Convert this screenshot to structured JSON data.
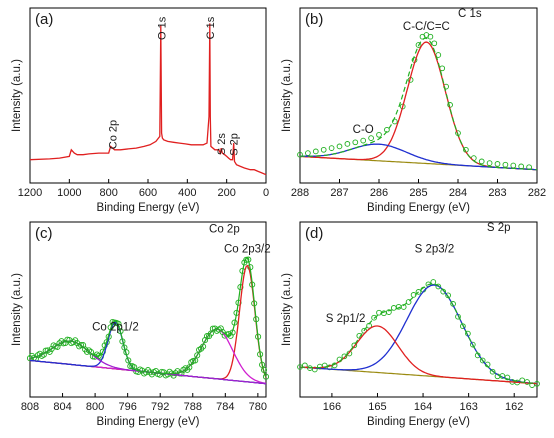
{
  "figure": {
    "panels": [
      {
        "id": "a",
        "label": "(a)",
        "xlabel": "Binding Energy (eV)",
        "ylabel": "Intensity (a.u.)",
        "xticks": [
          "1200",
          "1000",
          "800",
          "600",
          "400",
          "200",
          "0"
        ],
        "annotations": [
          {
            "text": "Co 2p",
            "vertical": true
          },
          {
            "text": "O 1s",
            "vertical": true
          },
          {
            "text": "C 1s",
            "vertical": true
          },
          {
            "text": "S 2s",
            "vertical": true
          },
          {
            "text": "S 2p",
            "vertical": true
          }
        ]
      },
      {
        "id": "b",
        "label": "(b)",
        "xlabel": "Binding Energy (eV)",
        "ylabel": "Intensity (a.u.)",
        "xticks": [
          "288",
          "287",
          "286",
          "285",
          "284",
          "283",
          "282"
        ],
        "title": "C 1s",
        "annotations": [
          {
            "text": "C-C/C=C"
          },
          {
            "text": "C-O"
          }
        ]
      },
      {
        "id": "c",
        "label": "(c)",
        "xlabel": "Binding Energy (eV)",
        "ylabel": "Intensity (a.u.)",
        "xticks": [
          "808",
          "804",
          "800",
          "796",
          "792",
          "788",
          "784",
          "780"
        ],
        "title": "Co 2p",
        "annotations": [
          {
            "text": "Co 2p3/2"
          },
          {
            "text": "Co 2p1/2"
          }
        ]
      },
      {
        "id": "d",
        "label": "(d)",
        "xlabel": "Binding Energy (eV)",
        "ylabel": "Intensity (a.u.)",
        "xticks": [
          "166",
          "165",
          "164",
          "163",
          "162"
        ],
        "title": "S 2p",
        "annotations": [
          {
            "text": "S 2p3/2"
          },
          {
            "text": "S 2p1/2"
          }
        ]
      }
    ]
  },
  "chart_data": [
    {
      "type": "line",
      "panel": "(a)",
      "xlabel": "Binding Energy (eV)",
      "ylabel": "Intensity (a.u.)",
      "xlim": [
        1200,
        0
      ],
      "ylim": [
        0,
        100
      ],
      "x_reversed": true,
      "colors": {
        "survey": "#e02020"
      },
      "series": [
        {
          "style": "line",
          "color": "#e02020",
          "x": [
            1200,
            1100,
            1050,
            1000,
            990,
            975,
            960,
            930,
            900,
            850,
            800,
            790,
            780,
            770,
            740,
            700,
            660,
            620,
            590,
            560,
            540,
            535,
            531,
            527,
            520,
            500,
            470,
            440,
            410,
            380,
            350,
            320,
            300,
            290,
            286,
            283,
            280,
            260,
            240,
            232,
            228,
            222,
            210,
            200,
            190,
            180,
            170,
            164,
            160,
            150,
            130,
            110,
            80,
            60,
            40,
            20,
            0
          ],
          "y": [
            14,
            14.5,
            15,
            16,
            20,
            18,
            17,
            17,
            17.5,
            18,
            18,
            22,
            21,
            20,
            20,
            20.5,
            21,
            22,
            23,
            25,
            28,
            95,
            30,
            27,
            26,
            25,
            24.5,
            24,
            23.5,
            23,
            23,
            23,
            24,
            40,
            96,
            40,
            22,
            20,
            20,
            18,
            21,
            18,
            17,
            16,
            15,
            14,
            14,
            24,
            13,
            11,
            10,
            9,
            8,
            8,
            7,
            6,
            5
          ]
        }
      ],
      "peaks": [
        {
          "name": "Co 2p",
          "x": 780
        },
        {
          "name": "O 1s",
          "x": 531
        },
        {
          "name": "C 1s",
          "x": 284.5
        },
        {
          "name": "S 2s",
          "x": 228
        },
        {
          "name": "S 2p",
          "x": 164
        }
      ]
    },
    {
      "type": "line",
      "panel": "(b)",
      "xlabel": "Binding Energy (eV)",
      "ylabel": "Intensity (a.u.)",
      "xlim": [
        288,
        282
      ],
      "ylim": [
        0,
        100
      ],
      "x_reversed": true,
      "baseline": {
        "x": [
          288,
          282
        ],
        "y": [
          16,
          8
        ]
      },
      "components": [
        {
          "name": "C-C/C=C",
          "center": 284.8,
          "height": 73,
          "sigma": 0.48,
          "color": "#e02020"
        },
        {
          "name": "C-O",
          "center": 286.0,
          "height": 10,
          "sigma": 0.7,
          "color": "#2030d0"
        }
      ],
      "colors": {
        "baseline": "#9a8a10",
        "envelope": "#20b020",
        "data": "#20b020"
      },
      "data_points": {
        "x": [
          288.0,
          287.8,
          287.6,
          287.4,
          287.2,
          287.0,
          286.8,
          286.6,
          286.4,
          286.2,
          286.0,
          285.8,
          285.6,
          285.4,
          285.2,
          285.1,
          285.0,
          284.9,
          284.8,
          284.7,
          284.6,
          284.5,
          284.4,
          284.3,
          284.2,
          284.0,
          283.8,
          283.6,
          283.4,
          283.2,
          283.0,
          282.8,
          282.6,
          282.4,
          282.2
        ],
        "y": [
          17,
          18,
          19,
          20,
          21,
          22,
          23.5,
          24.5,
          25.5,
          27,
          29,
          32,
          37,
          46,
          62,
          74,
          83,
          88,
          89,
          88,
          84,
          77,
          69,
          58,
          47,
          30,
          20,
          15,
          13,
          12,
          11.5,
          11,
          10.5,
          10,
          9.5
        ]
      }
    },
    {
      "type": "line",
      "panel": "(c)",
      "xlabel": "Binding Energy (eV)",
      "ylabel": "Intensity (a.u.)",
      "xlim": [
        808,
        779
      ],
      "ylim": [
        0,
        100
      ],
      "x_reversed": true,
      "baseline": {
        "x": [
          808,
          779
        ],
        "y": [
          22,
          8
        ]
      },
      "components": [
        {
          "name": "Co 2p3/2",
          "center": 781.3,
          "height": 70,
          "sigma": 0.95,
          "color": "#e02020"
        },
        {
          "name": "Co 2p3/2 satellite",
          "center": 785.0,
          "height": 30,
          "sigma": 1.9,
          "color": "#d020d0"
        },
        {
          "name": "Co 2p1/2",
          "center": 797.5,
          "height": 28,
          "sigma": 0.9,
          "color": "#2030d0"
        },
        {
          "name": "Co 2p1/2 satellite",
          "center": 803.0,
          "height": 14,
          "sigma": 2.3,
          "color": "#a020d0"
        }
      ],
      "colors": {
        "baseline": "#208020",
        "envelope": "#20b020",
        "data": "#20b020"
      }
    },
    {
      "type": "line",
      "panel": "(d)",
      "xlabel": "Binding Energy (eV)",
      "ylabel": "Intensity (a.u.)",
      "xlim": [
        166.7,
        161.5
      ],
      "ylim": [
        0,
        100
      ],
      "x_reversed": true,
      "baseline": {
        "x": [
          166.7,
          161.5
        ],
        "y": [
          18,
          8
        ]
      },
      "components": [
        {
          "name": "S 2p3/2",
          "center": 163.75,
          "height": 55,
          "sigma": 0.6,
          "color": "#2030d0"
        },
        {
          "name": "S 2p1/2",
          "center": 165.0,
          "height": 28,
          "sigma": 0.45,
          "color": "#e02020"
        }
      ],
      "colors": {
        "baseline": "#9a8a10",
        "envelope": "#20b020",
        "data": "#20b020"
      }
    }
  ]
}
